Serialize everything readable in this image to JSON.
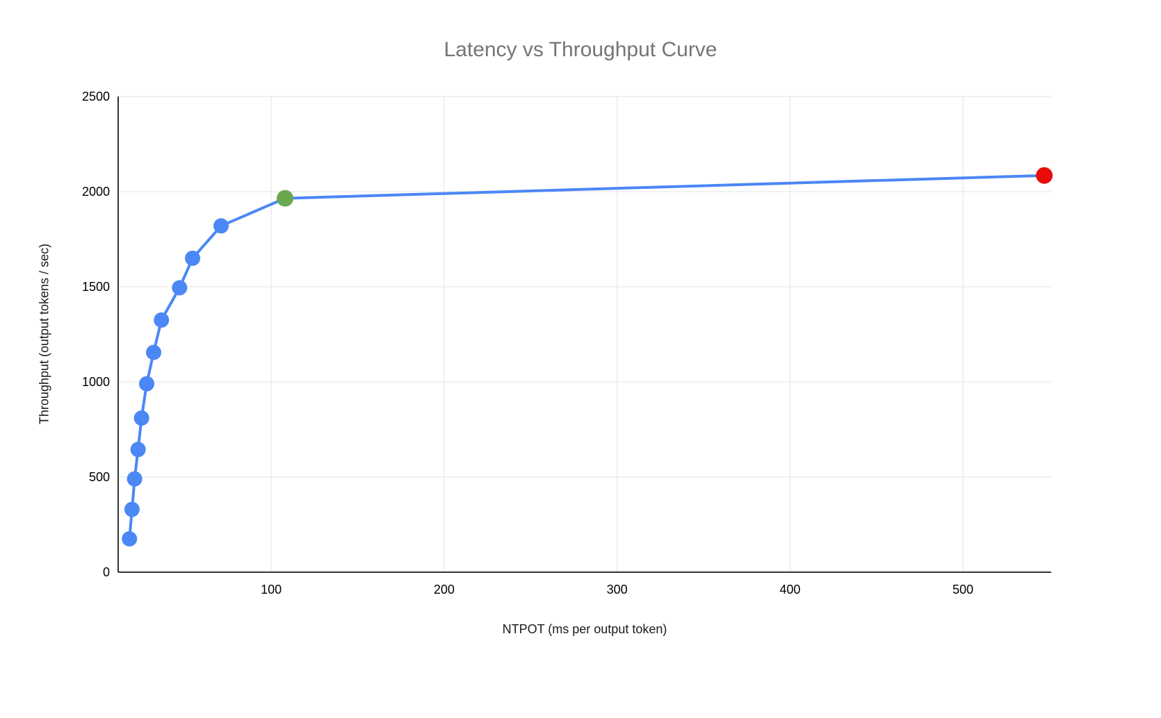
{
  "chart_data": {
    "type": "line",
    "title": "Latency vs Throughput Curve",
    "xlabel": "NTPOT (ms per output token)",
    "ylabel": "Throughput (output tokens / sec)",
    "x_ticks": [
      100,
      200,
      300,
      400,
      500
    ],
    "y_ticks": [
      0,
      500,
      1000,
      1500,
      2000,
      2500
    ],
    "x_range": [
      11.5,
      551
    ],
    "y_range": [
      0,
      2500
    ],
    "grid": true,
    "legend": "none",
    "colors": {
      "blue": "#4b87f5",
      "green": "#6aa84f",
      "red": "#ea0b0b",
      "line": "#4b87f5",
      "grid": "#e3e3e3",
      "axis": "#333333",
      "title": "#757575",
      "tick_label": "#000000"
    },
    "series": [
      {
        "name": "Throughput",
        "points": [
          {
            "x": 18,
            "y": 175,
            "color": "blue"
          },
          {
            "x": 19.5,
            "y": 330,
            "color": "blue"
          },
          {
            "x": 21,
            "y": 490,
            "color": "blue"
          },
          {
            "x": 23,
            "y": 645,
            "color": "blue"
          },
          {
            "x": 25,
            "y": 810,
            "color": "blue"
          },
          {
            "x": 28,
            "y": 990,
            "color": "blue"
          },
          {
            "x": 32,
            "y": 1155,
            "color": "blue"
          },
          {
            "x": 36.5,
            "y": 1325,
            "color": "blue"
          },
          {
            "x": 47,
            "y": 1495,
            "color": "blue"
          },
          {
            "x": 54.5,
            "y": 1650,
            "color": "blue"
          },
          {
            "x": 71,
            "y": 1820,
            "color": "blue"
          },
          {
            "x": 108,
            "y": 1965,
            "color": "green"
          },
          {
            "x": 547,
            "y": 2085,
            "color": "red"
          }
        ]
      }
    ]
  }
}
